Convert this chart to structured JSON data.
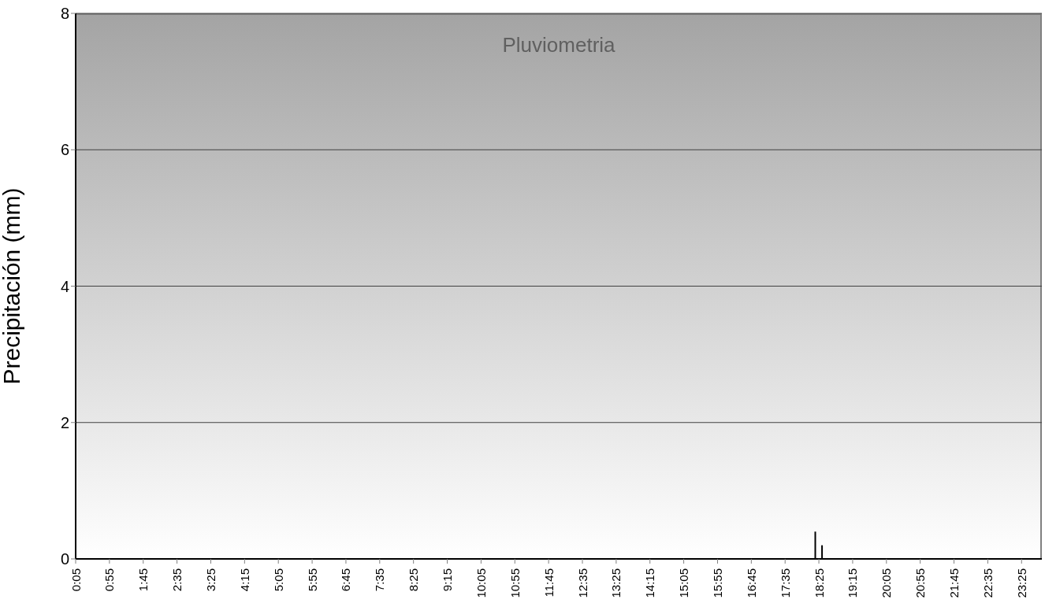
{
  "chart_data": {
    "type": "bar",
    "title": "Pluviometria",
    "ylabel": "Precipitación (mm)",
    "x": [
      18.3333,
      18.5
    ],
    "values": [
      0.4,
      0.2
    ],
    "color": "#000000",
    "xlim": [
      0.0833,
      23.9167
    ],
    "xticks": [
      {
        "value": 0.0833,
        "label": "0:05"
      },
      {
        "value": 0.9167,
        "label": "0:55"
      },
      {
        "value": 1.75,
        "label": "1:45"
      },
      {
        "value": 2.5833,
        "label": "2:35"
      },
      {
        "value": 3.4167,
        "label": "3:25"
      },
      {
        "value": 4.25,
        "label": "4:15"
      },
      {
        "value": 5.0833,
        "label": "5:05"
      },
      {
        "value": 5.9167,
        "label": "5:55"
      },
      {
        "value": 6.75,
        "label": "6:45"
      },
      {
        "value": 7.5833,
        "label": "7:35"
      },
      {
        "value": 8.4167,
        "label": "8:25"
      },
      {
        "value": 9.25,
        "label": "9:15"
      },
      {
        "value": 10.0833,
        "label": "10:05"
      },
      {
        "value": 10.9167,
        "label": "10:55"
      },
      {
        "value": 11.75,
        "label": "11:45"
      },
      {
        "value": 12.5833,
        "label": "12:35"
      },
      {
        "value": 13.4167,
        "label": "13:25"
      },
      {
        "value": 14.25,
        "label": "14:15"
      },
      {
        "value": 15.0833,
        "label": "15:05"
      },
      {
        "value": 15.9167,
        "label": "15:55"
      },
      {
        "value": 16.75,
        "label": "16:45"
      },
      {
        "value": 17.5833,
        "label": "17:35"
      },
      {
        "value": 18.4167,
        "label": "18:25"
      },
      {
        "value": 19.25,
        "label": "19:15"
      },
      {
        "value": 20.0833,
        "label": "20:05"
      },
      {
        "value": 20.9167,
        "label": "20:55"
      },
      {
        "value": 21.75,
        "label": "21:45"
      },
      {
        "value": 22.5833,
        "label": "22:35"
      },
      {
        "value": 23.4167,
        "label": "23:25"
      }
    ],
    "ylim": [
      0,
      8
    ],
    "yticks": [
      0,
      2,
      4,
      6,
      8
    ],
    "grid": "y"
  }
}
